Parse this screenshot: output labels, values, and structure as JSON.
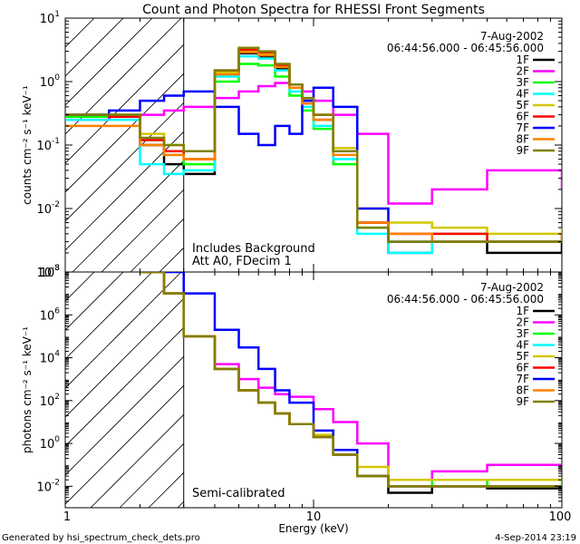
{
  "title": "Count and Photon Spectra for RHESSI Front Segments",
  "footer_left": "Generated by hsi_spectrum_check_dets.pro",
  "footer_right": "4-Sep-2014 23:19",
  "legend": {
    "date": "7-Aug-2002",
    "time_range": "06:44:56.000 - 06:45:56.000",
    "entries": [
      {
        "name": "1F",
        "color": "#000000"
      },
      {
        "name": "2F",
        "color": "#ff00ff"
      },
      {
        "name": "3F",
        "color": "#00ff00"
      },
      {
        "name": "4F",
        "color": "#00ffff"
      },
      {
        "name": "5F",
        "color": "#d4c800"
      },
      {
        "name": "6F",
        "color": "#ff0000"
      },
      {
        "name": "7F",
        "color": "#0000ff"
      },
      {
        "name": "8F",
        "color": "#ff8000"
      },
      {
        "name": "9F",
        "color": "#808000"
      }
    ]
  },
  "chart_data": [
    {
      "type": "line",
      "title": "Count and Photon Spectra for RHESSI Front Segments",
      "xscale": "log",
      "xlim": [
        1,
        100
      ],
      "x_ticks": [
        "1",
        "10",
        "100"
      ],
      "yscale": "log",
      "ylim": [
        0.001,
        10
      ],
      "y_tick_exponents": [
        "-3",
        "-2",
        "-1",
        "0",
        "1"
      ],
      "ylabel": "counts cm⁻² s⁻¹ keV⁻¹",
      "annotations": [
        "Includes Background",
        "Att A0, FDecim 1"
      ],
      "shaded_region": [
        1,
        3
      ],
      "series": [
        {
          "name": "1F",
          "x": [
            1,
            1.5,
            2,
            2.5,
            3,
            4,
            5,
            6,
            7,
            8,
            9,
            10,
            12,
            15,
            20,
            30,
            50,
            100
          ],
          "y": [
            0.3,
            0.3,
            0.1,
            0.05,
            0.035,
            1.3,
            2.8,
            2.5,
            1.6,
            0.8,
            0.5,
            0.25,
            0.08,
            0.006,
            0.002,
            0.003,
            0.002,
            0.003
          ]
        },
        {
          "name": "2F",
          "x": [
            1,
            1.5,
            2,
            2.5,
            3,
            4,
            5,
            6,
            7,
            8,
            9,
            10,
            12,
            15,
            20,
            30,
            50,
            100
          ],
          "y": [
            0.25,
            0.28,
            0.3,
            0.35,
            0.4,
            0.55,
            0.7,
            0.85,
            0.95,
            0.9,
            0.7,
            0.5,
            0.3,
            0.15,
            0.012,
            0.02,
            0.04,
            0.02
          ]
        },
        {
          "name": "3F",
          "x": [
            1,
            1.5,
            2,
            2.5,
            3,
            4,
            5,
            6,
            7,
            8,
            9,
            10,
            12,
            15,
            20,
            30,
            50,
            100
          ],
          "y": [
            0.28,
            0.3,
            0.12,
            0.07,
            0.05,
            1.0,
            1.9,
            1.8,
            1.2,
            0.6,
            0.35,
            0.18,
            0.05,
            0.005,
            0.003,
            0.004,
            0.003,
            0.004
          ]
        },
        {
          "name": "4F",
          "x": [
            1,
            1.5,
            2,
            2.5,
            3,
            4,
            5,
            6,
            7,
            8,
            9,
            10,
            12,
            15,
            20,
            30,
            50,
            100
          ],
          "y": [
            0.25,
            0.25,
            0.05,
            0.035,
            0.04,
            1.2,
            2.5,
            2.3,
            1.5,
            0.7,
            0.4,
            0.2,
            0.06,
            0.004,
            0.002,
            0.003,
            0.003,
            0.003
          ]
        },
        {
          "name": "5F",
          "x": [
            1,
            1.5,
            2,
            2.5,
            3,
            4,
            5,
            6,
            7,
            8,
            9,
            10,
            12,
            15,
            20,
            30,
            50,
            100
          ],
          "y": [
            0.3,
            0.3,
            0.15,
            0.1,
            0.08,
            1.4,
            3.0,
            2.7,
            1.7,
            0.8,
            0.5,
            0.3,
            0.09,
            0.01,
            0.006,
            0.005,
            0.004,
            0.005
          ]
        },
        {
          "name": "6F",
          "x": [
            1,
            1.5,
            2,
            2.5,
            3,
            4,
            5,
            6,
            7,
            8,
            9,
            10,
            12,
            15,
            20,
            30,
            50,
            100
          ],
          "y": [
            0.3,
            0.28,
            0.12,
            0.08,
            0.06,
            1.5,
            3.2,
            2.9,
            1.8,
            0.9,
            0.5,
            0.3,
            0.08,
            0.006,
            0.004,
            0.004,
            0.003,
            0.004
          ]
        },
        {
          "name": "7F",
          "x": [
            1,
            1.5,
            2,
            2.5,
            3,
            4,
            5,
            6,
            7,
            8,
            9,
            10,
            12,
            15,
            20,
            30,
            50,
            100
          ],
          "y": [
            0.3,
            0.35,
            0.5,
            0.6,
            0.7,
            0.4,
            0.15,
            0.1,
            0.2,
            0.15,
            0.5,
            0.8,
            0.4,
            0.01,
            0.003,
            0.003,
            0.003,
            0.003
          ]
        },
        {
          "name": "8F",
          "x": [
            1,
            1.5,
            2,
            2.5,
            3,
            4,
            5,
            6,
            7,
            8,
            9,
            10,
            12,
            15,
            20,
            30,
            50,
            100
          ],
          "y": [
            0.2,
            0.2,
            0.1,
            0.07,
            0.06,
            1.3,
            2.9,
            2.6,
            1.7,
            0.8,
            0.45,
            0.25,
            0.07,
            0.006,
            0.004,
            0.003,
            0.003,
            0.004
          ]
        },
        {
          "name": "9F",
          "x": [
            1,
            1.5,
            2,
            2.5,
            3,
            4,
            5,
            6,
            7,
            8,
            9,
            10,
            12,
            15,
            20,
            30,
            50,
            100
          ],
          "y": [
            0.3,
            0.3,
            0.13,
            0.1,
            0.08,
            1.5,
            3.4,
            3.0,
            1.9,
            0.9,
            0.55,
            0.3,
            0.08,
            0.005,
            0.003,
            0.003,
            0.003,
            0.003
          ]
        }
      ]
    },
    {
      "type": "line",
      "xscale": "log",
      "xlim": [
        1,
        100
      ],
      "x_ticks": [
        "1",
        "10",
        "100"
      ],
      "xlabel": "Energy (keV)",
      "yscale": "log",
      "ylim": [
        0.001,
        100000000
      ],
      "y_tick_exponents": [
        "-2",
        "0",
        "2",
        "4",
        "6",
        "8"
      ],
      "ylabel": "photons cm⁻² s⁻¹ keV⁻¹",
      "annotations": [
        "Semi-calibrated"
      ],
      "shaded_region": [
        1,
        3
      ],
      "series": [
        {
          "name": "1F",
          "x": [
            2,
            2.5,
            3,
            4,
            5,
            6,
            7,
            8,
            10,
            12,
            15,
            20,
            30,
            50,
            100
          ],
          "y": [
            100000000,
            10000000,
            100000,
            3000,
            300,
            80,
            25,
            8,
            2,
            0.3,
            0.03,
            0.005,
            0.01,
            0.008,
            0.01
          ]
        },
        {
          "name": "2F",
          "x": [
            2,
            2.5,
            3,
            4,
            5,
            6,
            7,
            8,
            10,
            12,
            15,
            20,
            30,
            50,
            100
          ],
          "y": [
            100000000,
            10000000,
            100000,
            5000,
            1000,
            400,
            200,
            150,
            40,
            10,
            1,
            0.02,
            0.05,
            0.1,
            0.05
          ]
        },
        {
          "name": "3F",
          "x": [
            2,
            2.5,
            3,
            4,
            5,
            6,
            7,
            8,
            10,
            12,
            15,
            20,
            30,
            50,
            100
          ],
          "y": [
            100000000,
            10000000,
            100000,
            3000,
            300,
            80,
            25,
            8,
            2,
            0.3,
            0.03,
            0.01,
            0.02,
            0.01,
            0.02
          ]
        },
        {
          "name": "4F",
          "x": [
            2,
            2.5,
            3,
            4,
            5,
            6,
            7,
            8,
            10,
            12,
            15,
            20,
            30,
            50,
            100
          ],
          "y": [
            100000000,
            10000000,
            100000,
            3000,
            300,
            80,
            25,
            8,
            2,
            0.3,
            0.03,
            0.01,
            0.01,
            0.01,
            0.01
          ]
        },
        {
          "name": "5F",
          "x": [
            2,
            2.5,
            3,
            4,
            5,
            6,
            7,
            8,
            10,
            12,
            15,
            20,
            30,
            50,
            100
          ],
          "y": [
            100000000,
            10000000,
            100000,
            3000,
            300,
            80,
            25,
            8,
            2.5,
            0.5,
            0.08,
            0.02,
            0.02,
            0.02,
            0.02
          ]
        },
        {
          "name": "6F",
          "x": [
            2,
            2.5,
            3,
            4,
            5,
            6,
            7,
            8,
            10,
            12,
            15,
            20,
            30,
            50,
            100
          ],
          "y": [
            100000000,
            10000000,
            100000,
            3000,
            300,
            80,
            25,
            8,
            2,
            0.3,
            0.03,
            0.01,
            0.01,
            0.01,
            0.01
          ]
        },
        {
          "name": "7F",
          "x": [
            2,
            2.5,
            3,
            4,
            5,
            6,
            7,
            8,
            10,
            12,
            15,
            20,
            30,
            50,
            100
          ],
          "y": [
            100000000,
            100000000,
            10000000,
            200000,
            30000,
            3000,
            300,
            80,
            4,
            0.5,
            0.03,
            0.01,
            0.01,
            0.01,
            0.01
          ]
        },
        {
          "name": "8F",
          "x": [
            2,
            2.5,
            3,
            4,
            5,
            6,
            7,
            8,
            10,
            12,
            15,
            20,
            30,
            50,
            100
          ],
          "y": [
            100000000,
            10000000,
            100000,
            3000,
            300,
            80,
            25,
            8,
            2,
            0.3,
            0.03,
            0.01,
            0.01,
            0.01,
            0.01
          ]
        },
        {
          "name": "9F",
          "x": [
            2,
            2.5,
            3,
            4,
            5,
            6,
            7,
            8,
            10,
            12,
            15,
            20,
            30,
            50,
            100
          ],
          "y": [
            100000000,
            10000000,
            100000,
            3000,
            300,
            80,
            25,
            8,
            2,
            0.3,
            0.03,
            0.01,
            0.01,
            0.01,
            0.01
          ]
        }
      ]
    }
  ]
}
